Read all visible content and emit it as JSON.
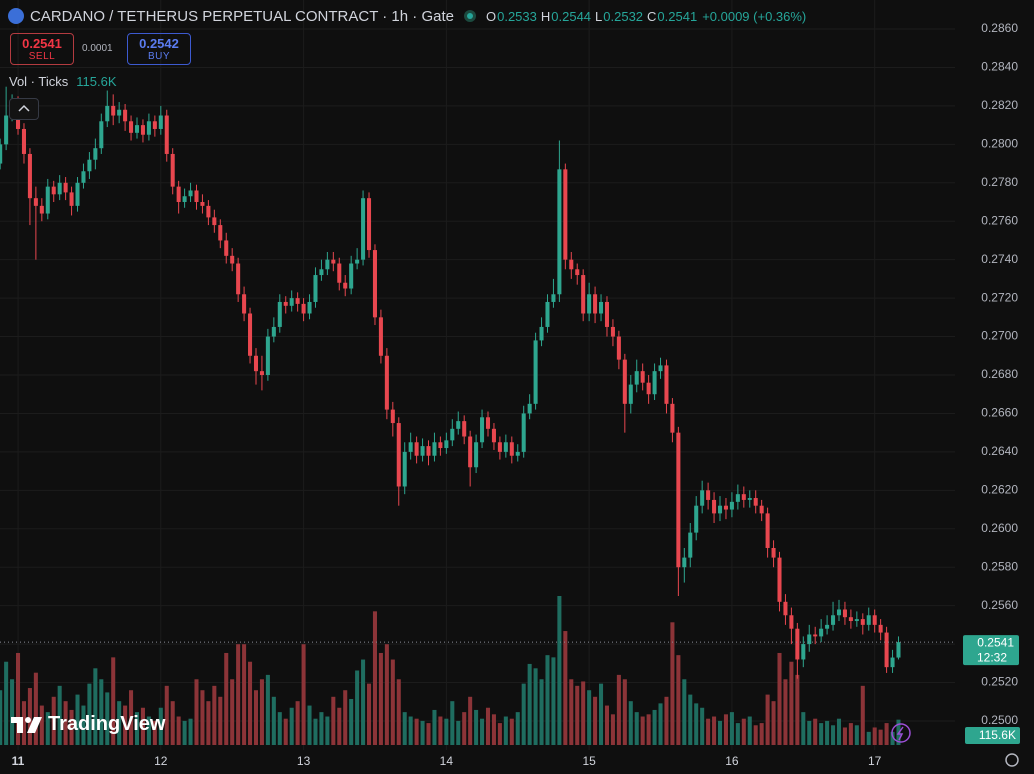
{
  "header": {
    "title": "CARDANO / TETHERUS PERPETUAL CONTRACT · 1h · Gate",
    "o": "O",
    "h": "H",
    "l": "L",
    "c": "C",
    "change": "+0.0009 (+0.36%)"
  },
  "trade": {
    "sell_price": 0.2541,
    "sell": "SELL",
    "spread": 0.0001,
    "buy_price": 0.2542,
    "buy": "BUY"
  },
  "volume_legend": "Vol · Ticks",
  "brand": "TradingView",
  "chart_data": {
    "type": "candlestick",
    "up_color": "#2ea68f",
    "down_color": "#e8474f",
    "volume_up_color": "#1f6d60",
    "volume_down_color": "#8c3438",
    "grid": true,
    "countdown": "12:32",
    "volume_label": "115.6K",
    "xlim": [
      -0.03,
      160.5
    ],
    "xticks": [
      {
        "value": 3,
        "label": "11"
      },
      {
        "value": 27,
        "label": "12"
      },
      {
        "value": 51,
        "label": "13"
      },
      {
        "value": 75,
        "label": "14"
      },
      {
        "value": 99,
        "label": "15"
      },
      {
        "value": 123,
        "label": "16"
      },
      {
        "value": 147,
        "label": "17"
      }
    ],
    "ylim": [
      0.24875,
      0.28751
    ],
    "yticks": [
      {
        "value": 0.25,
        "label": "0.2500"
      },
      {
        "value": 0.252,
        "label": "0.2520"
      },
      {
        "value": 0.254,
        "label": "0.2540"
      },
      {
        "value": 0.256,
        "label": "0.2560"
      },
      {
        "value": 0.258,
        "label": "0.2580"
      },
      {
        "value": 0.26,
        "label": "0.2600"
      },
      {
        "value": 0.262,
        "label": "0.2620"
      },
      {
        "value": 0.264,
        "label": "0.2640"
      },
      {
        "value": 0.266,
        "label": "0.2660"
      },
      {
        "value": 0.268,
        "label": "0.2680"
      },
      {
        "value": 0.27,
        "label": "0.2700"
      },
      {
        "value": 0.272,
        "label": "0.2720"
      },
      {
        "value": 0.274,
        "label": "0.2740"
      },
      {
        "value": 0.276,
        "label": "0.2760"
      },
      {
        "value": 0.278,
        "label": "0.2780"
      },
      {
        "value": 0.28,
        "label": "0.2800"
      },
      {
        "value": 0.282,
        "label": "0.2820"
      },
      {
        "value": 0.284,
        "label": "0.2840"
      },
      {
        "value": 0.286,
        "label": "0.2860"
      }
    ],
    "y2lim": [
      0,
      3400000
    ],
    "open": [
      0.279,
      0.28,
      0.2815,
      0.2822,
      0.2808,
      0.2795,
      0.2772,
      0.2768,
      0.2764,
      0.2778,
      0.2774,
      0.278,
      0.2775,
      0.2768,
      0.278,
      0.2786,
      0.2792,
      0.2798,
      0.2812,
      0.282,
      0.2815,
      0.2818,
      0.2812,
      0.2806,
      0.281,
      0.2805,
      0.2812,
      0.2808,
      0.2815,
      0.2795,
      0.2778,
      0.277,
      0.2773,
      0.2776,
      0.277,
      0.2768,
      0.2762,
      0.2758,
      0.275,
      0.2742,
      0.2738,
      0.2722,
      0.2712,
      0.269,
      0.2682,
      0.268,
      0.27,
      0.2705,
      0.2718,
      0.2716,
      0.272,
      0.2717,
      0.2712,
      0.2718,
      0.2732,
      0.2735,
      0.274,
      0.2738,
      0.2728,
      0.2725,
      0.2738,
      0.274,
      0.2772,
      0.2745,
      0.271,
      0.269,
      0.2662,
      0.2655,
      0.2622,
      0.264,
      0.2645,
      0.2638,
      0.2643,
      0.2638,
      0.2645,
      0.2642,
      0.2646,
      0.2652,
      0.2656,
      0.2648,
      0.2632,
      0.2645,
      0.2658,
      0.2652,
      0.2645,
      0.264,
      0.2645,
      0.2638,
      0.264,
      0.266,
      0.2665,
      0.2698,
      0.2705,
      0.2718,
      0.2722,
      0.2787,
      0.274,
      0.2735,
      0.2732,
      0.2712,
      0.2722,
      0.2712,
      0.2718,
      0.2705,
      0.27,
      0.2688,
      0.2665,
      0.2675,
      0.2682,
      0.2676,
      0.267,
      0.2682,
      0.2685,
      0.2665,
      0.265,
      0.258,
      0.2585,
      0.2598,
      0.2612,
      0.262,
      0.2615,
      0.2608,
      0.2612,
      0.261,
      0.2614,
      0.2618,
      0.2615,
      0.2616,
      0.2612,
      0.2608,
      0.259,
      0.2585,
      0.2562,
      0.2555,
      0.2548,
      0.2532,
      0.254,
      0.2545,
      0.2544,
      0.2548,
      0.255,
      0.2555,
      0.2558,
      0.2554,
      0.2552,
      0.2553,
      0.255,
      0.2555,
      0.255,
      0.2546,
      0.2528,
      0.2533
    ],
    "high": [
      0.2803,
      0.283,
      0.2826,
      0.2825,
      0.2811,
      0.2798,
      0.2778,
      0.2772,
      0.2782,
      0.2781,
      0.2784,
      0.2783,
      0.2778,
      0.2783,
      0.279,
      0.2796,
      0.2803,
      0.2816,
      0.2828,
      0.2826,
      0.2822,
      0.2821,
      0.2815,
      0.2814,
      0.2813,
      0.2816,
      0.2815,
      0.282,
      0.2818,
      0.2798,
      0.2781,
      0.2777,
      0.278,
      0.2779,
      0.2774,
      0.2771,
      0.2766,
      0.2761,
      0.2754,
      0.2746,
      0.2741,
      0.2726,
      0.2715,
      0.2694,
      0.269,
      0.2704,
      0.271,
      0.2722,
      0.2721,
      0.2724,
      0.2723,
      0.272,
      0.2722,
      0.2736,
      0.274,
      0.2744,
      0.2744,
      0.2741,
      0.2732,
      0.2742,
      0.2746,
      0.2776,
      0.2775,
      0.2748,
      0.2714,
      0.2694,
      0.2666,
      0.2658,
      0.2645,
      0.265,
      0.2648,
      0.2647,
      0.2646,
      0.265,
      0.2648,
      0.265,
      0.2657,
      0.2661,
      0.2659,
      0.2651,
      0.2649,
      0.2662,
      0.2661,
      0.2655,
      0.2648,
      0.2649,
      0.2648,
      0.2644,
      0.2664,
      0.267,
      0.2702,
      0.271,
      0.2722,
      0.273,
      0.2802,
      0.279,
      0.2744,
      0.2738,
      0.2735,
      0.2728,
      0.2726,
      0.2722,
      0.2721,
      0.2709,
      0.2703,
      0.2691,
      0.268,
      0.2688,
      0.2686,
      0.268,
      0.2686,
      0.2689,
      0.2688,
      0.2668,
      0.2653,
      0.259,
      0.2603,
      0.2617,
      0.2625,
      0.2624,
      0.2619,
      0.2617,
      0.2616,
      0.2619,
      0.2623,
      0.2622,
      0.262,
      0.262,
      0.2615,
      0.2611,
      0.2594,
      0.2588,
      0.2566,
      0.2559,
      0.2551,
      0.2544,
      0.255,
      0.2549,
      0.2553,
      0.2555,
      0.2562,
      0.2563,
      0.2562,
      0.2558,
      0.2557,
      0.2556,
      0.2559,
      0.2558,
      0.2553,
      0.2549,
      0.2537,
      0.2544
    ],
    "low": [
      0.2787,
      0.2797,
      0.2812,
      0.2805,
      0.279,
      0.2758,
      0.274,
      0.276,
      0.2761,
      0.277,
      0.2771,
      0.2771,
      0.2763,
      0.2765,
      0.2777,
      0.2782,
      0.2787,
      0.2795,
      0.2809,
      0.281,
      0.2811,
      0.2807,
      0.2802,
      0.2803,
      0.2801,
      0.2802,
      0.2804,
      0.2805,
      0.2791,
      0.2774,
      0.2764,
      0.2767,
      0.277,
      0.2766,
      0.2764,
      0.2758,
      0.2754,
      0.2746,
      0.2738,
      0.2734,
      0.2718,
      0.2708,
      0.2686,
      0.2675,
      0.2672,
      0.2677,
      0.2697,
      0.2702,
      0.2712,
      0.2713,
      0.2713,
      0.2708,
      0.2709,
      0.2715,
      0.2729,
      0.2732,
      0.2734,
      0.2724,
      0.2721,
      0.2722,
      0.2735,
      0.2737,
      0.2741,
      0.2706,
      0.2686,
      0.2657,
      0.2648,
      0.2612,
      0.2618,
      0.2636,
      0.2634,
      0.2635,
      0.2633,
      0.2635,
      0.2638,
      0.2639,
      0.2643,
      0.2649,
      0.2644,
      0.2622,
      0.2629,
      0.2642,
      0.2648,
      0.2641,
      0.2636,
      0.2637,
      0.2634,
      0.2635,
      0.2637,
      0.2657,
      0.2662,
      0.2695,
      0.2702,
      0.2715,
      0.2718,
      0.2735,
      0.273,
      0.2727,
      0.2708,
      0.2708,
      0.2707,
      0.2708,
      0.27,
      0.2695,
      0.2683,
      0.265,
      0.266,
      0.2671,
      0.2672,
      0.2665,
      0.2667,
      0.2678,
      0.266,
      0.2645,
      0.2565,
      0.2572,
      0.258,
      0.2594,
      0.2608,
      0.261,
      0.2603,
      0.2604,
      0.2605,
      0.2606,
      0.261,
      0.2611,
      0.2611,
      0.2608,
      0.2604,
      0.2585,
      0.258,
      0.2557,
      0.255,
      0.254,
      0.2522,
      0.2528,
      0.2536,
      0.254,
      0.2541,
      0.2545,
      0.2547,
      0.2552,
      0.255,
      0.2548,
      0.2549,
      0.2545,
      0.2547,
      0.2546,
      0.2542,
      0.2525,
      0.2525,
      0.2532
    ],
    "close": [
      0.28,
      0.2815,
      0.2822,
      0.2808,
      0.2795,
      0.2772,
      0.2768,
      0.2764,
      0.2778,
      0.2774,
      0.278,
      0.2775,
      0.2768,
      0.278,
      0.2786,
      0.2792,
      0.2798,
      0.2812,
      0.282,
      0.2815,
      0.2818,
      0.2812,
      0.2806,
      0.281,
      0.2805,
      0.2812,
      0.2808,
      0.2815,
      0.2795,
      0.2778,
      0.277,
      0.2773,
      0.2776,
      0.277,
      0.2768,
      0.2762,
      0.2758,
      0.275,
      0.2742,
      0.2738,
      0.2722,
      0.2712,
      0.269,
      0.2682,
      0.268,
      0.27,
      0.2705,
      0.2718,
      0.2716,
      0.272,
      0.2717,
      0.2712,
      0.2718,
      0.2732,
      0.2735,
      0.274,
      0.2738,
      0.2728,
      0.2725,
      0.2738,
      0.274,
      0.2772,
      0.2745,
      0.271,
      0.269,
      0.2662,
      0.2655,
      0.2622,
      0.264,
      0.2645,
      0.2638,
      0.2643,
      0.2638,
      0.2645,
      0.2642,
      0.2646,
      0.2652,
      0.2656,
      0.2648,
      0.2632,
      0.2645,
      0.2658,
      0.2652,
      0.2645,
      0.264,
      0.2645,
      0.2638,
      0.264,
      0.266,
      0.2665,
      0.2698,
      0.2705,
      0.2718,
      0.2722,
      0.2787,
      0.274,
      0.2735,
      0.2732,
      0.2712,
      0.2722,
      0.2712,
      0.2718,
      0.2705,
      0.27,
      0.2688,
      0.2665,
      0.2675,
      0.2682,
      0.2676,
      0.267,
      0.2682,
      0.2685,
      0.2665,
      0.265,
      0.258,
      0.2585,
      0.2598,
      0.2612,
      0.262,
      0.2615,
      0.2608,
      0.2612,
      0.261,
      0.2614,
      0.2618,
      0.2615,
      0.2616,
      0.2612,
      0.2608,
      0.259,
      0.2585,
      0.2562,
      0.2555,
      0.2548,
      0.2532,
      0.254,
      0.2545,
      0.2544,
      0.2548,
      0.255,
      0.2555,
      0.2558,
      0.2554,
      0.2552,
      0.2553,
      0.255,
      0.2555,
      0.255,
      0.2546,
      0.2528,
      0.2533,
      0.2541
    ],
    "volume": [
      250000,
      380000,
      300000,
      420000,
      200000,
      260000,
      330000,
      180000,
      150000,
      220000,
      270000,
      200000,
      160000,
      230000,
      180000,
      280000,
      350000,
      300000,
      240000,
      400000,
      200000,
      180000,
      250000,
      150000,
      170000,
      130000,
      110000,
      170000,
      270000,
      200000,
      130000,
      110000,
      120000,
      300000,
      250000,
      200000,
      270000,
      220000,
      420000,
      300000,
      460000,
      460000,
      380000,
      250000,
      300000,
      320000,
      220000,
      150000,
      120000,
      170000,
      200000,
      460000,
      180000,
      120000,
      150000,
      130000,
      220000,
      170000,
      250000,
      210000,
      340000,
      390000,
      280000,
      610000,
      420000,
      460000,
      390000,
      300000,
      150000,
      130000,
      120000,
      110000,
      100000,
      160000,
      130000,
      120000,
      200000,
      110000,
      150000,
      220000,
      160000,
      120000,
      170000,
      140000,
      100000,
      130000,
      120000,
      150000,
      280000,
      370000,
      350000,
      300000,
      410000,
      400000,
      680000,
      520000,
      300000,
      270000,
      290000,
      250000,
      220000,
      280000,
      180000,
      140000,
      320000,
      300000,
      200000,
      150000,
      130000,
      140000,
      160000,
      190000,
      220000,
      560000,
      410000,
      300000,
      230000,
      190000,
      170000,
      120000,
      130000,
      110000,
      140000,
      150000,
      100000,
      120000,
      130000,
      90000,
      100000,
      230000,
      200000,
      420000,
      300000,
      380000,
      320000,
      150000,
      110000,
      120000,
      100000,
      110000,
      90000,
      120000,
      80000,
      100000,
      90000,
      270000,
      60000,
      80000,
      70000,
      100000,
      60000,
      115600
    ]
  }
}
